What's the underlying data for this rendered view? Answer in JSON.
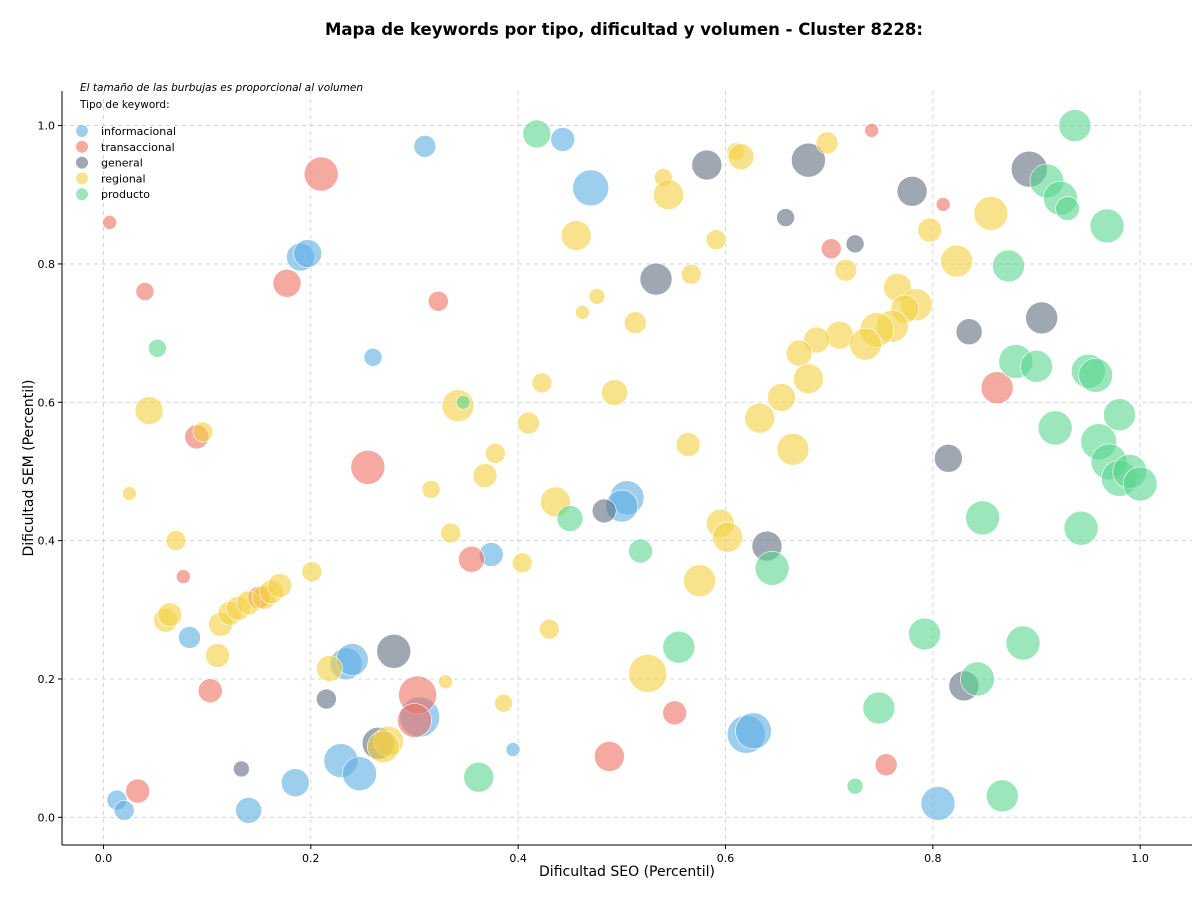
{
  "chart_data": {
    "type": "scatter",
    "title": "Mapa de keywords por tipo, dificultad y volumen - Cluster 8228:",
    "xlabel": "Dificultad SEO (Percentil)",
    "ylabel": "Dificultad SEM (Percentil)",
    "xlim": [
      -0.04,
      1.05
    ],
    "ylim": [
      -0.04,
      1.05
    ],
    "xticks": [
      "0.0",
      "0.2",
      "0.4",
      "0.6",
      "0.8",
      "1.0"
    ],
    "yticks": [
      "0.0",
      "0.2",
      "0.4",
      "0.6",
      "0.8",
      "1.0"
    ],
    "grid": true,
    "note": "El tamaño de las burbujas es proporcional al volumen",
    "legend_title": "Tipo de keyword:",
    "legend_position": "top-left",
    "series": [
      {
        "name": "informacional",
        "color": "#5DADE2",
        "points": [
          [
            0.31,
            0.97,
            11
          ],
          [
            0.443,
            0.98,
            12
          ],
          [
            0.47,
            0.91,
            18
          ],
          [
            0.19,
            0.81,
            14
          ],
          [
            0.197,
            0.815,
            14
          ],
          [
            0.26,
            0.665,
            9
          ],
          [
            0.505,
            0.462,
            17
          ],
          [
            0.5,
            0.45,
            16
          ],
          [
            0.374,
            0.38,
            12
          ],
          [
            0.083,
            0.26,
            11
          ],
          [
            0.234,
            0.222,
            16
          ],
          [
            0.24,
            0.228,
            16
          ],
          [
            0.229,
            0.082,
            17
          ],
          [
            0.247,
            0.063,
            17
          ],
          [
            0.185,
            0.05,
            14
          ],
          [
            0.14,
            0.01,
            13
          ],
          [
            0.013,
            0.025,
            10
          ],
          [
            0.02,
            0.01,
            10
          ],
          [
            0.62,
            0.12,
            19
          ],
          [
            0.627,
            0.125,
            18
          ],
          [
            0.305,
            0.145,
            20
          ],
          [
            0.395,
            0.098,
            7
          ],
          [
            0.805,
            0.02,
            17
          ]
        ]
      },
      {
        "name": "transaccional",
        "color": "#EC7063",
        "points": [
          [
            0.21,
            0.93,
            17
          ],
          [
            0.006,
            0.86,
            7
          ],
          [
            0.04,
            0.76,
            9
          ],
          [
            0.177,
            0.772,
            14
          ],
          [
            0.323,
            0.746,
            10
          ],
          [
            0.741,
            0.993,
            7
          ],
          [
            0.81,
            0.886,
            7
          ],
          [
            0.702,
            0.822,
            10
          ],
          [
            0.255,
            0.506,
            17
          ],
          [
            0.09,
            0.55,
            12
          ],
          [
            0.355,
            0.373,
            13
          ],
          [
            0.077,
            0.348,
            7
          ],
          [
            0.15,
            0.318,
            11
          ],
          [
            0.103,
            0.183,
            12
          ],
          [
            0.303,
            0.177,
            19
          ],
          [
            0.3,
            0.14,
            17
          ],
          [
            0.033,
            0.038,
            12
          ],
          [
            0.488,
            0.088,
            15
          ],
          [
            0.551,
            0.151,
            12
          ],
          [
            0.755,
            0.076,
            11
          ],
          [
            0.862,
            0.621,
            16
          ]
        ]
      },
      {
        "name": "general",
        "color": "#5D6D7E",
        "points": [
          [
            0.582,
            0.943,
            15
          ],
          [
            0.68,
            0.95,
            17
          ],
          [
            0.78,
            0.905,
            15
          ],
          [
            0.893,
            0.937,
            18
          ],
          [
            0.658,
            0.867,
            9
          ],
          [
            0.725,
            0.829,
            9
          ],
          [
            0.533,
            0.778,
            16
          ],
          [
            0.835,
            0.702,
            13
          ],
          [
            0.905,
            0.722,
            16
          ],
          [
            0.28,
            0.24,
            17
          ],
          [
            0.215,
            0.171,
            10
          ],
          [
            0.133,
            0.07,
            8
          ],
          [
            0.483,
            0.443,
            12
          ],
          [
            0.64,
            0.392,
            15
          ],
          [
            0.815,
            0.519,
            14
          ],
          [
            0.83,
            0.19,
            15
          ],
          [
            0.265,
            0.107,
            16
          ]
        ]
      },
      {
        "name": "regional",
        "color": "#F4D03F",
        "points": [
          [
            0.61,
            0.962,
            9
          ],
          [
            0.615,
            0.955,
            13
          ],
          [
            0.698,
            0.975,
            11
          ],
          [
            0.54,
            0.925,
            9
          ],
          [
            0.545,
            0.9,
            15
          ],
          [
            0.856,
            0.873,
            17
          ],
          [
            0.456,
            0.841,
            15
          ],
          [
            0.591,
            0.835,
            10
          ],
          [
            0.797,
            0.849,
            12
          ],
          [
            0.823,
            0.804,
            16
          ],
          [
            0.567,
            0.785,
            10
          ],
          [
            0.716,
            0.791,
            11
          ],
          [
            0.476,
            0.753,
            8
          ],
          [
            0.462,
            0.73,
            7
          ],
          [
            0.513,
            0.715,
            11
          ],
          [
            0.766,
            0.766,
            14
          ],
          [
            0.784,
            0.741,
            16
          ],
          [
            0.773,
            0.735,
            14
          ],
          [
            0.761,
            0.71,
            16
          ],
          [
            0.746,
            0.705,
            17
          ],
          [
            0.71,
            0.697,
            14
          ],
          [
            0.688,
            0.69,
            13
          ],
          [
            0.735,
            0.684,
            16
          ],
          [
            0.671,
            0.671,
            13
          ],
          [
            0.68,
            0.634,
            15
          ],
          [
            0.423,
            0.628,
            10
          ],
          [
            0.493,
            0.614,
            13
          ],
          [
            0.654,
            0.607,
            14
          ],
          [
            0.633,
            0.577,
            15
          ],
          [
            0.665,
            0.532,
            16
          ],
          [
            0.564,
            0.539,
            12
          ],
          [
            0.41,
            0.57,
            11
          ],
          [
            0.342,
            0.595,
            16
          ],
          [
            0.378,
            0.526,
            10
          ],
          [
            0.368,
            0.494,
            12
          ],
          [
            0.316,
            0.474,
            9
          ],
          [
            0.436,
            0.456,
            15
          ],
          [
            0.335,
            0.411,
            10
          ],
          [
            0.595,
            0.425,
            14
          ],
          [
            0.602,
            0.405,
            15
          ],
          [
            0.404,
            0.368,
            10
          ],
          [
            0.575,
            0.342,
            16
          ],
          [
            0.43,
            0.272,
            10
          ],
          [
            0.525,
            0.208,
            19
          ],
          [
            0.386,
            0.165,
            9
          ],
          [
            0.33,
            0.196,
            7
          ],
          [
            0.218,
            0.215,
            13
          ],
          [
            0.201,
            0.355,
            10
          ],
          [
            0.044,
            0.588,
            14
          ],
          [
            0.096,
            0.557,
            10
          ],
          [
            0.025,
            0.468,
            7
          ],
          [
            0.07,
            0.4,
            10
          ],
          [
            0.06,
            0.285,
            12
          ],
          [
            0.064,
            0.293,
            12
          ],
          [
            0.113,
            0.279,
            12
          ],
          [
            0.11,
            0.234,
            12
          ],
          [
            0.122,
            0.295,
            12
          ],
          [
            0.13,
            0.302,
            12
          ],
          [
            0.14,
            0.31,
            12
          ],
          [
            0.155,
            0.318,
            12
          ],
          [
            0.162,
            0.326,
            12
          ],
          [
            0.17,
            0.335,
            12
          ],
          [
            0.275,
            0.11,
            15
          ],
          [
            0.27,
            0.102,
            16
          ]
        ]
      },
      {
        "name": "producto",
        "color": "#58D68D",
        "points": [
          [
            0.418,
            0.988,
            14
          ],
          [
            0.937,
            1.0,
            16
          ],
          [
            0.91,
            0.92,
            17
          ],
          [
            0.923,
            0.895,
            17
          ],
          [
            0.93,
            0.88,
            12
          ],
          [
            0.968,
            0.855,
            17
          ],
          [
            0.873,
            0.797,
            16
          ],
          [
            0.88,
            0.659,
            17
          ],
          [
            0.9,
            0.652,
            16
          ],
          [
            0.95,
            0.645,
            17
          ],
          [
            0.957,
            0.639,
            17
          ],
          [
            0.98,
            0.582,
            16
          ],
          [
            0.918,
            0.563,
            17
          ],
          [
            0.96,
            0.543,
            18
          ],
          [
            0.97,
            0.514,
            18
          ],
          [
            0.98,
            0.49,
            18
          ],
          [
            0.99,
            0.5,
            17
          ],
          [
            1.0,
            0.482,
            17
          ],
          [
            0.943,
            0.418,
            17
          ],
          [
            0.848,
            0.433,
            17
          ],
          [
            0.45,
            0.432,
            13
          ],
          [
            0.518,
            0.385,
            12
          ],
          [
            0.645,
            0.36,
            17
          ],
          [
            0.555,
            0.246,
            16
          ],
          [
            0.792,
            0.265,
            16
          ],
          [
            0.887,
            0.252,
            17
          ],
          [
            0.843,
            0.2,
            17
          ],
          [
            0.748,
            0.158,
            16
          ],
          [
            0.362,
            0.058,
            15
          ],
          [
            0.725,
            0.045,
            8
          ],
          [
            0.867,
            0.031,
            16
          ],
          [
            0.052,
            0.678,
            9
          ],
          [
            0.347,
            0.6,
            7
          ]
        ]
      }
    ]
  }
}
